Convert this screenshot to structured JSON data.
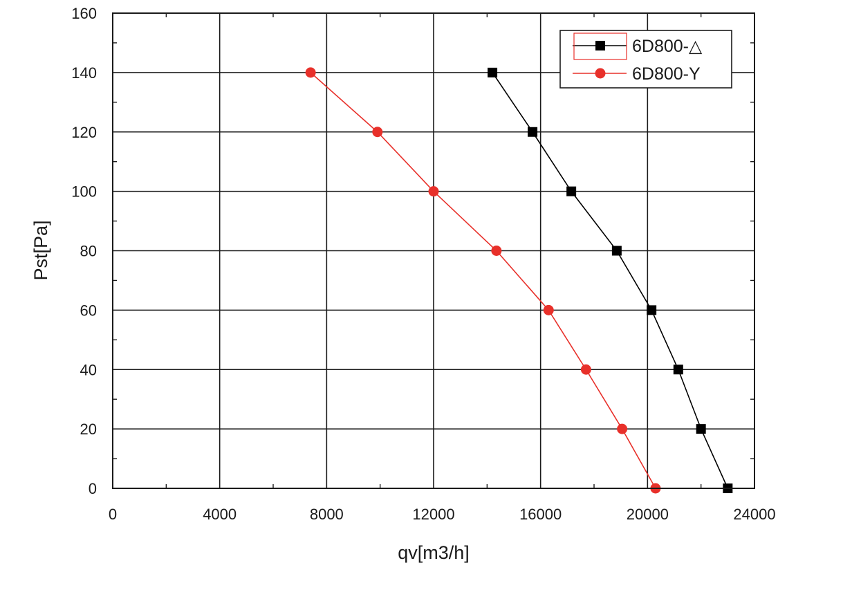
{
  "chart_data": {
    "type": "line",
    "title": "",
    "xlabel": "qv[m3/h]",
    "ylabel": "Pst[Pa]",
    "xlim": [
      0,
      24000
    ],
    "ylim": [
      0,
      160
    ],
    "xticks": [
      0,
      4000,
      8000,
      12000,
      16000,
      20000,
      24000
    ],
    "yticks": [
      0,
      20,
      40,
      60,
      80,
      100,
      120,
      140,
      160
    ],
    "grid": true,
    "legend_position": "top-right",
    "series": [
      {
        "name": "6D800-△",
        "color": "#000000",
        "marker": "square",
        "x": [
          14200,
          15700,
          17150,
          18850,
          20150,
          21150,
          22000,
          23000
        ],
        "y": [
          140,
          120,
          100,
          80,
          60,
          40,
          20,
          0
        ]
      },
      {
        "name": "6D800-Y",
        "color": "#e8302a",
        "marker": "circle",
        "x": [
          7400,
          9900,
          12000,
          14350,
          16300,
          17700,
          19050,
          20300
        ],
        "y": [
          140,
          120,
          100,
          80,
          60,
          40,
          20,
          0
        ]
      }
    ]
  }
}
